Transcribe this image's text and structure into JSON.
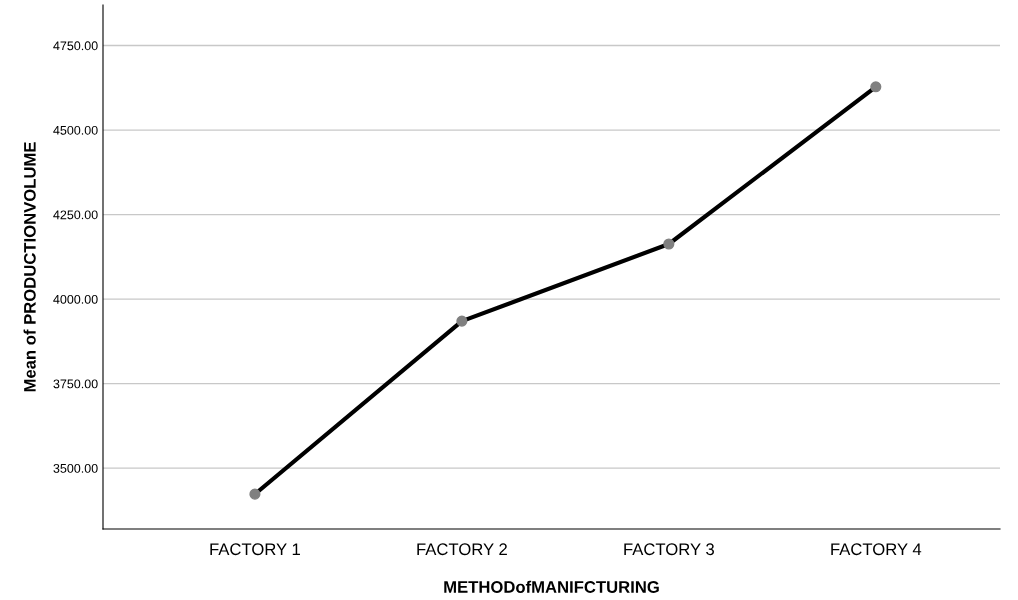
{
  "chart_data": {
    "type": "line",
    "xlabel": "METHODofMANIFCTURING",
    "ylabel": "Mean of PRODUCTIONVOLUME",
    "categories": [
      "FACTORY 1",
      "FACTORY 2",
      "FACTORY 3",
      "FACTORY 4"
    ],
    "series": [
      {
        "color": "#000000",
        "values": [
          3423,
          3935,
          4163,
          4628
        ]
      }
    ],
    "ylim": [
      3320,
      4870
    ],
    "yticks": [
      {
        "value": 3500,
        "label": "3500.00"
      },
      {
        "value": 3750,
        "label": "3750.00"
      },
      {
        "value": 4000,
        "label": "4000.00"
      },
      {
        "value": 4250,
        "label": "4250.00"
      },
      {
        "value": 4500,
        "label": "4500.00"
      },
      {
        "value": 4750,
        "label": "4750.00"
      }
    ],
    "grid": "y",
    "marker": "circle",
    "line_style": "solid",
    "legend": false
  }
}
